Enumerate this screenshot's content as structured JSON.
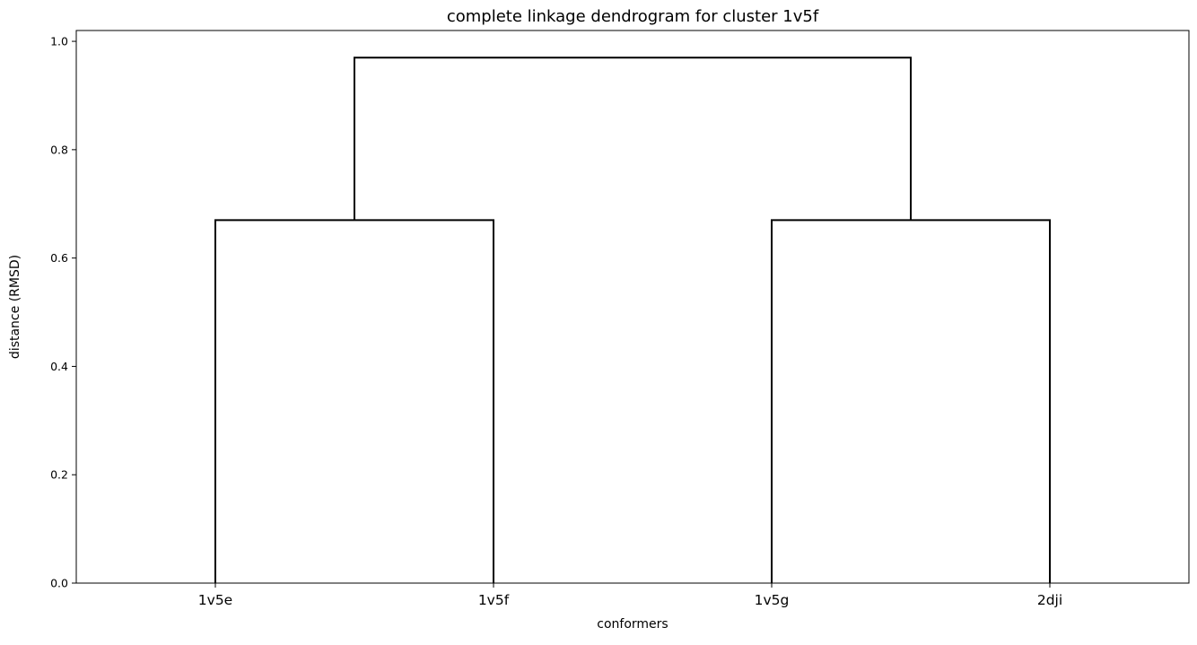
{
  "chart_data": {
    "type": "dendrogram",
    "title": "complete linkage dendrogram for cluster 1v5f",
    "xlabel": "conformers",
    "ylabel": "distance (RMSD)",
    "leaves": [
      "1v5e",
      "1v5f",
      "1v5g",
      "2dji"
    ],
    "yticks": [
      "0.0",
      "0.2",
      "0.4",
      "0.6",
      "0.8",
      "1.0"
    ],
    "ylim": [
      0,
      1.02
    ],
    "grid": false,
    "legend": "none",
    "line_color": "#000000",
    "merges": [
      {
        "left": "1v5e",
        "right": "1v5f",
        "height": 0.67
      },
      {
        "left": "1v5g",
        "right": "2dji",
        "height": 0.67
      },
      {
        "left": "1v5e+1v5f",
        "right": "1v5g+2dji",
        "height": 0.97
      }
    ]
  }
}
